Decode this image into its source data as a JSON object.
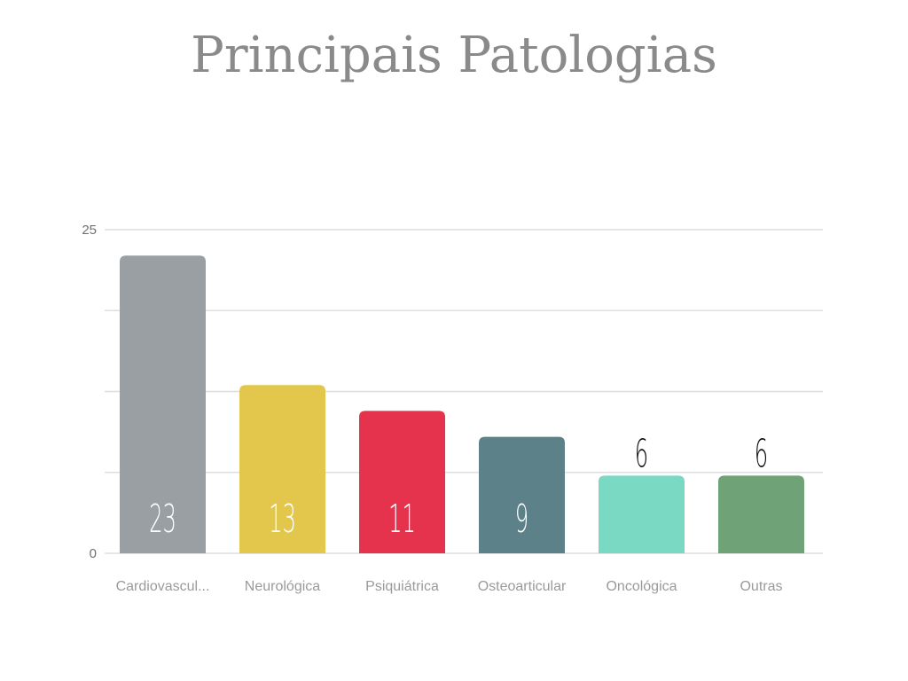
{
  "chart_data": {
    "type": "bar",
    "title": "Principais Patologias",
    "categories": [
      "Cardiovascul...",
      "Neurológica",
      "Psiquiátrica",
      "Osteoarticular",
      "Oncológica",
      "Outras"
    ],
    "values": [
      23,
      13,
      11,
      9,
      6,
      6
    ],
    "colors": [
      "#9a9fa3",
      "#e3c74d",
      "#e5324d",
      "#5c8189",
      "#7ad9c3",
      "#6fa276"
    ],
    "value_label_position": [
      "inside",
      "inside",
      "inside",
      "inside",
      "above",
      "above"
    ],
    "ylim": [
      0,
      25
    ],
    "y_tick_labels": [
      "0",
      "25"
    ],
    "gridlines": [
      0,
      6.25,
      12.5,
      18.75,
      25
    ],
    "grid": true,
    "legend": "none",
    "xlabel": "",
    "ylabel": ""
  }
}
